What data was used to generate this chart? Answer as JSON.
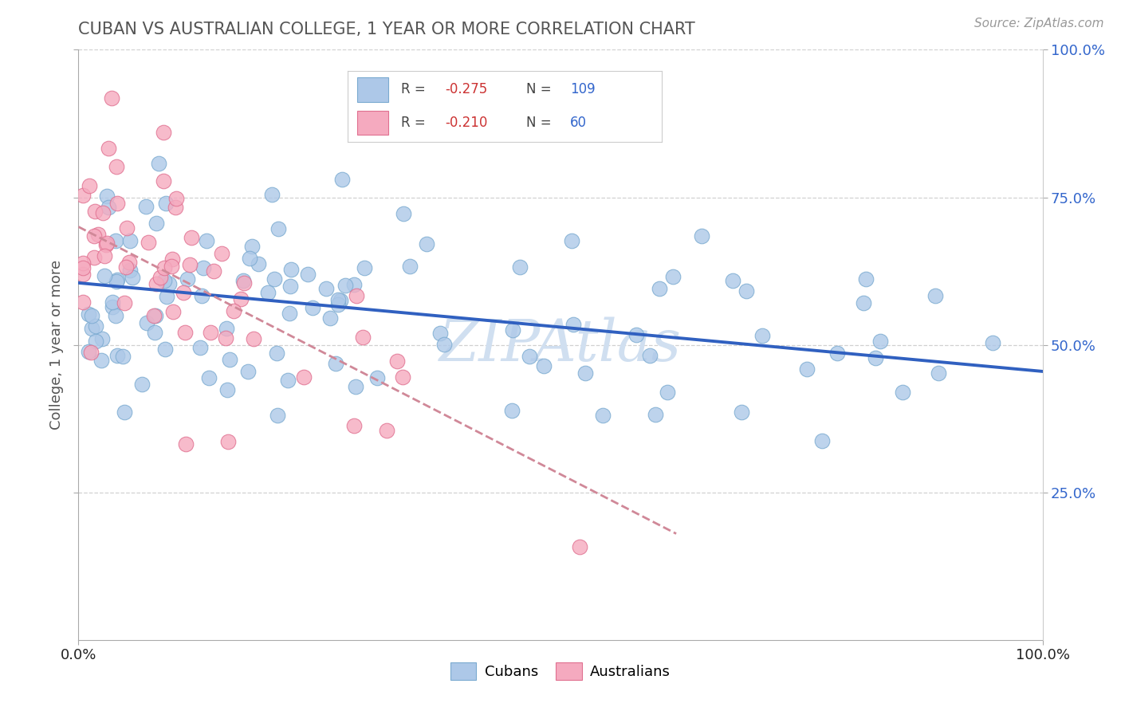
{
  "title": "CUBAN VS AUSTRALIAN COLLEGE, 1 YEAR OR MORE CORRELATION CHART",
  "source_text": "Source: ZipAtlas.com",
  "ylabel": "College, 1 year or more",
  "xlim": [
    0.0,
    1.0
  ],
  "ylim": [
    0.0,
    1.0
  ],
  "cubans_R": "-0.275",
  "cubans_N": "109",
  "australians_R": "-0.210",
  "australians_N": "60",
  "cuban_color": "#adc8e8",
  "cuban_edge_color": "#7aaad0",
  "australian_color": "#f5aabf",
  "australian_edge_color": "#e07090",
  "trendline_cuban_color": "#3060c0",
  "trendline_australian_color": "#d08898",
  "legend_text_color_dark": "#444444",
  "legend_R_color": "#cc3333",
  "legend_N_color": "#3366cc",
  "axis_tick_color": "#3366cc",
  "title_color": "#555555",
  "watermark_color": "#d0dff0",
  "watermark_text": "ZIPAtlas",
  "cuban_trend_start_y": 0.605,
  "cuban_trend_end_y": 0.455,
  "australian_trend_x0": 0.0,
  "australian_trend_y0": 0.7,
  "australian_trend_x1": 0.62,
  "australian_trend_y1": 0.18
}
